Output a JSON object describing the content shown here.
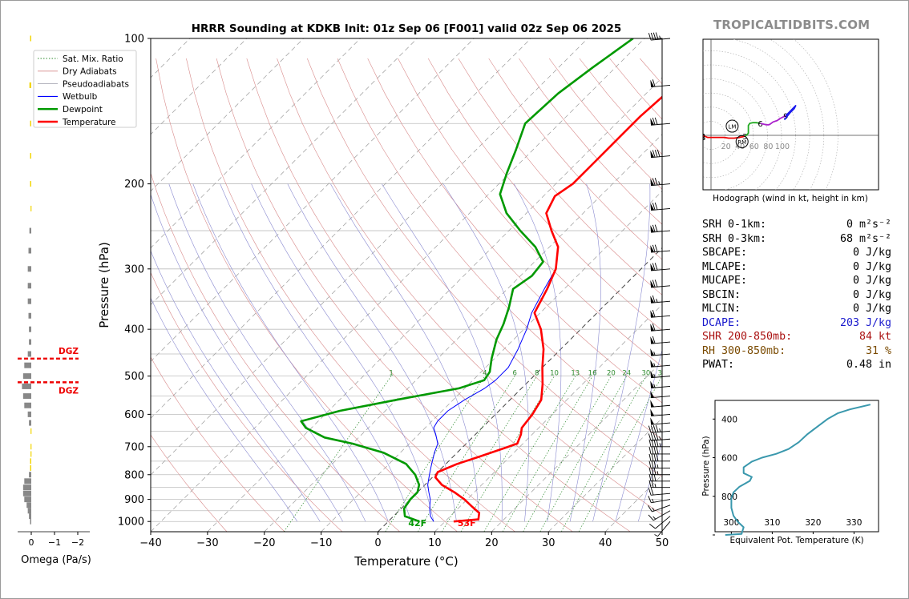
{
  "site_name": "TROPICALTIDBITS.COM",
  "title": "HRRR Sounding at KDKB Init: 01z Sep 06 [F001] valid 02z Sep 06 2025",
  "colors": {
    "temperature": "#ff0000",
    "dewpoint": "#009900",
    "wetbulb": "#0000ff",
    "dry_adiabat": "#d88a8a",
    "moist_adiabat": "#8a8ad0",
    "mixing_ratio": "#2e8b2e",
    "omega_pos": "#f2d500",
    "omega_neg": "#888888",
    "dgz": "#ee0000",
    "theta_e": "#3a98ad",
    "dcape": "#1a1acd",
    "shr": "#aa1111",
    "rh": "#7a4a00",
    "hodo_0_3": "#ee0000",
    "hodo_3_6": "#22aa22",
    "hodo_6_9": "#aa22cc",
    "hodo_9_12": "#1a1aee"
  },
  "skewt": {
    "xlabel": "Temperature (°C)",
    "ylabel": "Pressure (hPa)",
    "xlim": [
      -40,
      50
    ],
    "ylim": [
      1050,
      100
    ],
    "x_ticks": [
      "−40",
      "−30",
      "−20",
      "−10",
      "0",
      "10",
      "20",
      "30",
      "40",
      "50"
    ],
    "y_ticks": [
      "100",
      "200",
      "300",
      "400",
      "500",
      "600",
      "700",
      "800",
      "900",
      "1000"
    ],
    "legend": [
      {
        "label": "Sat. Mix. Ratio",
        "style": "dotted"
      },
      {
        "label": "Dry Adiabats",
        "style": "solid-thin"
      },
      {
        "label": "Pseudoadiabats",
        "style": "solid-thin"
      },
      {
        "label": "Wetbulb",
        "style": "solid"
      },
      {
        "label": "Dewpoint",
        "style": "solid-thick"
      },
      {
        "label": "Temperature",
        "style": "solid-thick"
      }
    ],
    "mixing_ratio_labels": [
      "1",
      "4",
      "6",
      "8",
      "10",
      "13",
      "16",
      "20",
      "24",
      "30",
      "36"
    ],
    "surface_dewpoint_label": "42F",
    "surface_temperature_label": "53F",
    "dgz_label": "DGZ"
  },
  "chart_data": [
    {
      "type": "line",
      "title": "HRRR Sounding at KDKB Init: 01z Sep 06 [F001] valid 02z Sep 06 2025",
      "xlabel": "Temperature (°C)",
      "ylabel": "Pressure (hPa)",
      "xlim": [
        -40,
        50
      ],
      "ylim": [
        1050,
        100
      ],
      "y_scale": "log",
      "skew": "temperature isotherms skewed 45°",
      "grid": true,
      "legend_position": "top-left",
      "series": [
        {
          "name": "Temperature",
          "points": [
            [
              1000,
              11.5
            ],
            [
              990,
              15.5
            ],
            [
              960,
              14.5
            ],
            [
              930,
              12.0
            ],
            [
              900,
              9.5
            ],
            [
              870,
              6.5
            ],
            [
              840,
              3.0
            ],
            [
              810,
              0.5
            ],
            [
              790,
              0.0
            ],
            [
              760,
              2.0
            ],
            [
              735,
              4.5
            ],
            [
              705,
              7.5
            ],
            [
              690,
              9.0
            ],
            [
              660,
              8.0
            ],
            [
              640,
              7.0
            ],
            [
              600,
              6.5
            ],
            [
              560,
              5.5
            ],
            [
              520,
              3.0
            ],
            [
              480,
              0.0
            ],
            [
              440,
              -3.0
            ],
            [
              400,
              -7.0
            ],
            [
              370,
              -11.0
            ],
            [
              330,
              -13.0
            ],
            [
              300,
              -15.0
            ],
            [
              270,
              -18.5
            ],
            [
              250,
              -22.5
            ],
            [
              230,
              -26.5
            ],
            [
              212,
              -28.0
            ],
            [
              200,
              -27.0
            ],
            [
              180,
              -27.0
            ],
            [
              160,
              -27.0
            ],
            [
              145,
              -27.0
            ],
            [
              130,
              -26.5
            ],
            [
              115,
              -25.0
            ],
            [
              100,
              -22.5
            ]
          ]
        },
        {
          "name": "Dewpoint",
          "points": [
            [
              1000,
              5.5
            ],
            [
              975,
              2.0
            ],
            [
              940,
              0.5
            ],
            [
              900,
              0.0
            ],
            [
              870,
              0.0
            ],
            [
              840,
              -1.0
            ],
            [
              800,
              -3.5
            ],
            [
              760,
              -7.0
            ],
            [
              720,
              -13.0
            ],
            [
              690,
              -20.0
            ],
            [
              670,
              -26.0
            ],
            [
              640,
              -31.0
            ],
            [
              620,
              -33.0
            ],
            [
              590,
              -28.0
            ],
            [
              560,
              -20.0
            ],
            [
              530,
              -11.0
            ],
            [
              510,
              -8.0
            ],
            [
              490,
              -8.5
            ],
            [
              460,
              -10.5
            ],
            [
              420,
              -13.0
            ],
            [
              390,
              -14.5
            ],
            [
              360,
              -16.5
            ],
            [
              330,
              -19.0
            ],
            [
              310,
              -18.0
            ],
            [
              290,
              -18.5
            ],
            [
              270,
              -22.5
            ],
            [
              250,
              -28.0
            ],
            [
              230,
              -33.5
            ],
            [
              210,
              -38.0
            ],
            [
              190,
              -40.5
            ],
            [
              170,
              -43.0
            ],
            [
              150,
              -46.0
            ],
            [
              130,
              -45.5
            ],
            [
              115,
              -44.0
            ],
            [
              100,
              -42.0
            ]
          ]
        },
        {
          "name": "Wetbulb",
          "points": [
            [
              1000,
              8.0
            ],
            [
              975,
              6.5
            ],
            [
              940,
              5.0
            ],
            [
              900,
              3.5
            ],
            [
              870,
              2.0
            ],
            [
              840,
              0.5
            ],
            [
              800,
              -1.0
            ],
            [
              760,
              -2.5
            ],
            [
              720,
              -4.0
            ],
            [
              690,
              -5.0
            ],
            [
              660,
              -7.0
            ],
            [
              640,
              -8.5
            ],
            [
              620,
              -9.0
            ],
            [
              590,
              -9.0
            ],
            [
              560,
              -8.0
            ],
            [
              530,
              -6.5
            ],
            [
              510,
              -6.0
            ],
            [
              480,
              -6.0
            ],
            [
              440,
              -7.5
            ],
            [
              400,
              -9.5
            ],
            [
              370,
              -11.5
            ],
            [
              330,
              -13.5
            ],
            [
              300,
              -15.0
            ],
            [
              270,
              -18.5
            ],
            [
              250,
              -22.5
            ],
            [
              230,
              -26.5
            ],
            [
              212,
              -28.0
            ],
            [
              200,
              -27.0
            ],
            [
              180,
              -27.0
            ],
            [
              160,
              -27.0
            ],
            [
              145,
              -27.0
            ],
            [
              130,
              -26.5
            ],
            [
              115,
              -25.0
            ],
            [
              100,
              -22.5
            ]
          ]
        }
      ]
    },
    {
      "type": "line",
      "title": "Hodograph (wind in kt, height in km)",
      "xlabel": "",
      "ylabel": "",
      "x_tick_labels": [
        "20",
        "40",
        "60",
        "80",
        "100"
      ],
      "markers": [
        {
          "label": "LM",
          "u": 30,
          "v": 13
        },
        {
          "label": "RM",
          "u": 44,
          "v": -9
        }
      ],
      "series": [
        {
          "name": "0-3 km",
          "points": [
            [
              -14,
              0
            ],
            [
              -10,
              -1
            ],
            [
              -7,
              -2
            ],
            [
              -5,
              -3
            ],
            [
              0,
              -3
            ],
            [
              6,
              -3
            ],
            [
              12,
              -3
            ],
            [
              19,
              -3
            ],
            [
              25,
              -4
            ],
            [
              33,
              -4
            ],
            [
              40,
              -3
            ],
            [
              45,
              -2
            ],
            [
              48,
              -1
            ]
          ],
          "labels": [
            {
              "text": "1",
              "u": -10,
              "v": -1
            },
            {
              "text": "2",
              "u": -7,
              "v": -2
            },
            {
              "text": "3",
              "u": 48,
              "v": -1
            }
          ]
        },
        {
          "name": "3-6 km",
          "points": [
            [
              48,
              -1
            ],
            [
              50,
              0
            ],
            [
              53,
              3
            ],
            [
              53,
              7
            ],
            [
              53,
              14
            ],
            [
              55,
              17
            ],
            [
              59,
              18
            ],
            [
              64,
              18
            ],
            [
              70,
              17
            ]
          ],
          "labels": [
            {
              "text": "6",
              "u": 70,
              "v": 17
            }
          ]
        },
        {
          "name": "6-9 km",
          "points": [
            [
              70,
              17
            ],
            [
              78,
              15
            ],
            [
              82,
              15
            ],
            [
              84,
              16
            ],
            [
              88,
              19
            ],
            [
              94,
              21
            ],
            [
              98,
              24
            ],
            [
              106,
              28
            ]
          ],
          "labels": [
            {
              "text": "9",
              "u": 106,
              "v": 28
            }
          ]
        },
        {
          "name": "9-12 km",
          "points": [
            [
              106,
              28
            ],
            [
              112,
              34
            ],
            [
              118,
              40
            ],
            [
              120,
              42
            ],
            [
              118,
              38
            ],
            [
              112,
              32
            ],
            [
              108,
              27
            ],
            [
              104,
              22
            ]
          ]
        }
      ]
    },
    {
      "type": "line",
      "title": "",
      "xlabel": "Equivalent Pot. Temperature (K)",
      "ylabel": "Pressure (hPa)",
      "x_ticks": [
        "300",
        "310",
        "320",
        "330"
      ],
      "y_ticks": [
        "400",
        "600",
        "800"
      ],
      "xlim": [
        296,
        336
      ],
      "ylim": [
        1000,
        320
      ],
      "series": [
        {
          "name": "Equivalent Pot. Temperature",
          "points": [
            [
              1000,
              298.5
            ],
            [
              995,
              302.5
            ],
            [
              960,
              303.0
            ],
            [
              930,
              301.5
            ],
            [
              900,
              300.5
            ],
            [
              860,
              300.0
            ],
            [
              810,
              300.0
            ],
            [
              780,
              300.5
            ],
            [
              750,
              302.0
            ],
            [
              720,
              304.5
            ],
            [
              700,
              305.0
            ],
            [
              680,
              303.0
            ],
            [
              650,
              303.0
            ],
            [
              620,
              305.0
            ],
            [
              600,
              307.5
            ],
            [
              580,
              311.0
            ],
            [
              555,
              314.0
            ],
            [
              520,
              316.5
            ],
            [
              480,
              318.5
            ],
            [
              440,
              321.0
            ],
            [
              400,
              323.5
            ],
            [
              370,
              326.0
            ],
            [
              350,
              329.0
            ],
            [
              325,
              334.0
            ]
          ]
        }
      ]
    },
    {
      "type": "bar",
      "title": "",
      "xlabel": "Omega (Pa/s)",
      "ylabel": "",
      "x_ticks": [
        "0",
        "−1",
        "−2"
      ],
      "xlim": [
        0.1,
        -2.3
      ],
      "pressures": [
        1000,
        975,
        950,
        925,
        900,
        875,
        850,
        825,
        800,
        775,
        750,
        725,
        700,
        675,
        650,
        625,
        600,
        575,
        550,
        525,
        500,
        475,
        450,
        425,
        400,
        375,
        350,
        325,
        300,
        275,
        250,
        225,
        200,
        175,
        150,
        125,
        100
      ],
      "values": [
        -0.05,
        -0.1,
        -0.15,
        -0.2,
        -0.3,
        -0.35,
        -0.35,
        -0.3,
        -0.1,
        0.05,
        0.05,
        0.03,
        0.03,
        0.0,
        0.03,
        -0.1,
        -0.15,
        -0.3,
        -0.35,
        -0.4,
        -0.35,
        -0.3,
        -0.15,
        -0.1,
        -0.1,
        -0.12,
        -0.15,
        -0.15,
        -0.15,
        -0.12,
        -0.08,
        0.03,
        0.05,
        0.05,
        0.05,
        0.08,
        0.05
      ],
      "dgz_pressures": [
        460,
        515
      ]
    }
  ],
  "hodograph": {
    "caption": "Hodograph (wind in kt, height in km)"
  },
  "theta_e": {
    "xlabel": "Equivalent Pot. Temperature (K)",
    "ylabel": "Pressure (hPa)"
  },
  "omega": {
    "xlabel": "Omega (Pa/s)"
  },
  "stats": [
    {
      "label": "SRH 0-1km:",
      "value": "0 m²s⁻²",
      "color": "#000000"
    },
    {
      "label": "SRH 0-3km:",
      "value": "68 m²s⁻²",
      "color": "#000000"
    },
    {
      "label": "SBCAPE:",
      "value": "0 J/kg",
      "color": "#000000"
    },
    {
      "label": "MLCAPE:",
      "value": "0 J/kg",
      "color": "#000000"
    },
    {
      "label": "MUCAPE:",
      "value": "0 J/kg",
      "color": "#000000"
    },
    {
      "label": "SBCIN:",
      "value": "0 J/kg",
      "color": "#000000"
    },
    {
      "label": "MLCIN:",
      "value": "0 J/kg",
      "color": "#000000"
    },
    {
      "label": "DCAPE:",
      "value": "203 J/kg",
      "color": "#1a1acd"
    },
    {
      "label": "SHR 200-850mb:",
      "value": "84 kt",
      "color": "#aa1111"
    },
    {
      "label": "RH 300-850mb:",
      "value": "31 %",
      "color": "#7a4a00"
    },
    {
      "label": "PWAT:",
      "value": "0.48 in",
      "color": "#000000"
    }
  ],
  "wind_barbs": {
    "pressures": [
      1000,
      975,
      950,
      925,
      900,
      875,
      850,
      825,
      800,
      775,
      750,
      725,
      700,
      675,
      650,
      625,
      600,
      575,
      550,
      525,
      500,
      475,
      450,
      425,
      400,
      375,
      350,
      325,
      300,
      275,
      250,
      225,
      200,
      175,
      150,
      125,
      100
    ],
    "speed_kt": [
      5,
      10,
      15,
      15,
      15,
      20,
      25,
      30,
      35,
      35,
      40,
      40,
      45,
      45,
      45,
      50,
      50,
      50,
      50,
      55,
      55,
      55,
      55,
      60,
      60,
      60,
      65,
      70,
      70,
      70,
      70,
      70,
      75,
      80,
      70,
      60,
      45
    ],
    "dir_deg": [
      220,
      230,
      240,
      250,
      260,
      265,
      270,
      270,
      270,
      270,
      270,
      270,
      270,
      265,
      265,
      265,
      265,
      265,
      265,
      265,
      265,
      265,
      265,
      265,
      265,
      265,
      265,
      265,
      265,
      265,
      265,
      265,
      265,
      265,
      265,
      265,
      265
    ]
  }
}
